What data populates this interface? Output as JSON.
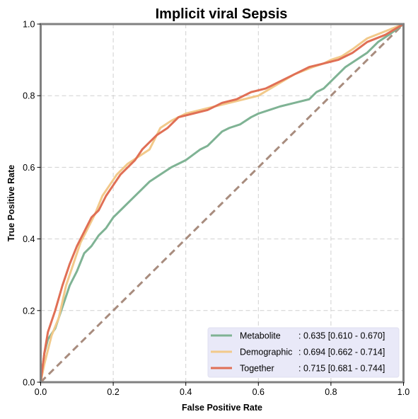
{
  "chart_data": {
    "type": "line",
    "title": "Implicit viral Sepsis",
    "xlabel": "False Positive Rate",
    "ylabel": "True Positive Rate",
    "xlim": [
      0,
      1
    ],
    "ylim": [
      0,
      1
    ],
    "xticks": [
      "0.0",
      "0.2",
      "0.4",
      "0.6",
      "0.8",
      "1.0"
    ],
    "yticks": [
      "0.0",
      "0.2",
      "0.4",
      "0.6",
      "0.8",
      "1.0"
    ],
    "grid": true,
    "legend_position": "lower-right",
    "diagonal": {
      "x": [
        0,
        1
      ],
      "y": [
        0,
        1
      ],
      "color": "#A88C7E",
      "style": "dashed"
    },
    "series": [
      {
        "name": "Metabolite",
        "auc_text": ": 0.635 [0.610 - 0.670]",
        "color": "#7FB394",
        "x": [
          0,
          0.01,
          0.02,
          0.04,
          0.06,
          0.08,
          0.1,
          0.12,
          0.14,
          0.16,
          0.18,
          0.2,
          0.22,
          0.25,
          0.28,
          0.3,
          0.33,
          0.36,
          0.4,
          0.44,
          0.46,
          0.48,
          0.5,
          0.52,
          0.55,
          0.58,
          0.6,
          0.63,
          0.66,
          0.7,
          0.74,
          0.76,
          0.78,
          0.8,
          0.82,
          0.84,
          0.87,
          0.9,
          0.93,
          0.96,
          1.0
        ],
        "y": [
          0,
          0.08,
          0.12,
          0.15,
          0.21,
          0.27,
          0.31,
          0.36,
          0.38,
          0.41,
          0.43,
          0.46,
          0.48,
          0.51,
          0.54,
          0.56,
          0.58,
          0.6,
          0.62,
          0.65,
          0.66,
          0.68,
          0.7,
          0.71,
          0.72,
          0.74,
          0.75,
          0.76,
          0.77,
          0.78,
          0.79,
          0.81,
          0.82,
          0.84,
          0.86,
          0.88,
          0.9,
          0.92,
          0.95,
          0.97,
          1.0
        ]
      },
      {
        "name": "Demographic",
        "auc_text": ": 0.694 [0.662 - 0.714]",
        "color": "#F2C98A",
        "x": [
          0,
          0.01,
          0.02,
          0.03,
          0.05,
          0.07,
          0.09,
          0.11,
          0.13,
          0.15,
          0.17,
          0.19,
          0.21,
          0.24,
          0.27,
          0.3,
          0.33,
          0.36,
          0.4,
          0.44,
          0.48,
          0.52,
          0.56,
          0.6,
          0.65,
          0.7,
          0.75,
          0.78,
          0.8,
          0.83,
          0.86,
          0.9,
          0.95,
          1.0
        ],
        "y": [
          0,
          0.05,
          0.09,
          0.13,
          0.18,
          0.27,
          0.33,
          0.39,
          0.43,
          0.47,
          0.52,
          0.55,
          0.58,
          0.61,
          0.63,
          0.65,
          0.71,
          0.73,
          0.75,
          0.76,
          0.77,
          0.78,
          0.79,
          0.8,
          0.83,
          0.86,
          0.88,
          0.89,
          0.9,
          0.91,
          0.93,
          0.96,
          0.98,
          1.0
        ]
      },
      {
        "name": "Together",
        "auc_text": ": 0.715 [0.681 - 0.744]",
        "color": "#E06F55",
        "x": [
          0,
          0.01,
          0.02,
          0.03,
          0.04,
          0.06,
          0.08,
          0.1,
          0.12,
          0.14,
          0.16,
          0.18,
          0.2,
          0.22,
          0.24,
          0.26,
          0.28,
          0.3,
          0.32,
          0.35,
          0.38,
          0.42,
          0.46,
          0.5,
          0.54,
          0.58,
          0.62,
          0.66,
          0.7,
          0.74,
          0.78,
          0.82,
          0.86,
          0.9,
          0.95,
          1.0
        ],
        "y": [
          0,
          0.08,
          0.14,
          0.17,
          0.2,
          0.27,
          0.33,
          0.38,
          0.42,
          0.46,
          0.48,
          0.52,
          0.55,
          0.58,
          0.6,
          0.62,
          0.65,
          0.67,
          0.69,
          0.71,
          0.74,
          0.75,
          0.76,
          0.78,
          0.79,
          0.81,
          0.82,
          0.84,
          0.86,
          0.88,
          0.89,
          0.9,
          0.92,
          0.95,
          0.97,
          1.0
        ]
      }
    ]
  }
}
